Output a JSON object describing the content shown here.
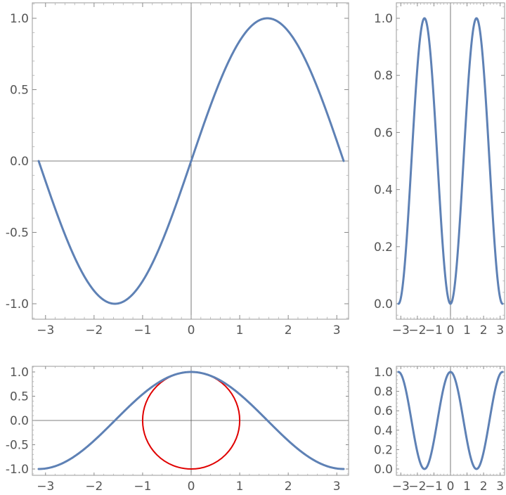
{
  "colors": {
    "series": "#5e81b5",
    "circle": "#e00000",
    "frame": "#9a9a9a",
    "text": "#555555"
  },
  "chart_data": [
    {
      "type": "line",
      "panel": "top-left",
      "function": "sin(x)",
      "xlim": [
        -3.14159,
        3.14159
      ],
      "ylim": [
        -1.0,
        1.0
      ],
      "grid": false,
      "x_ticks": [
        -3,
        -2,
        -1,
        0,
        1,
        2,
        3
      ],
      "x_tick_labels": [
        "−3",
        "−2",
        "−1",
        "0",
        "1",
        "2",
        "3"
      ],
      "y_ticks": [
        -1.0,
        -0.5,
        0.0,
        0.5,
        1.0
      ],
      "y_tick_labels": [
        "-1.0",
        "-0.5",
        "0.0",
        "0.5",
        "1.0"
      ],
      "series": [
        {
          "x": [
            -3.1416,
            -2.3562,
            -1.5708,
            -0.7854,
            0,
            0.7854,
            1.5708,
            2.3562,
            3.1416
          ],
          "y": [
            0,
            -0.707,
            -1.0,
            -0.707,
            0,
            0.707,
            1.0,
            0.707,
            0
          ]
        }
      ]
    },
    {
      "type": "line",
      "panel": "top-right",
      "function": "sin(x)^2",
      "xlim": [
        -3.14159,
        3.14159
      ],
      "ylim": [
        0,
        1.0
      ],
      "grid": false,
      "x_ticks": [
        -3,
        -2,
        -1,
        0,
        1,
        2,
        3
      ],
      "x_tick_labels": [
        "−3",
        "−2",
        "−1",
        "0",
        "1",
        "2",
        "3"
      ],
      "y_ticks": [
        0.0,
        0.2,
        0.4,
        0.6,
        0.8,
        1.0
      ],
      "y_tick_labels": [
        "0.0",
        "0.2",
        "0.4",
        "0.6",
        "0.8",
        "1.0"
      ],
      "series": [
        {
          "x": [
            -3.1416,
            -2.3562,
            -1.5708,
            -0.7854,
            0,
            0.7854,
            1.5708,
            2.3562,
            3.1416
          ],
          "y": [
            0,
            0.5,
            1.0,
            0.5,
            0,
            0.5,
            1.0,
            0.5,
            0
          ]
        }
      ]
    },
    {
      "type": "line",
      "panel": "bottom-left",
      "function": "cos(x)",
      "xlim": [
        -3.14159,
        3.14159
      ],
      "ylim": [
        -1.0,
        1.0
      ],
      "grid": false,
      "x_ticks": [
        -3,
        -2,
        -1,
        0,
        1,
        2,
        3
      ],
      "x_tick_labels": [
        "−3",
        "−2",
        "−1",
        "0",
        "1",
        "2",
        "3"
      ],
      "y_ticks": [
        -1.0,
        -0.5,
        0.0,
        0.5,
        1.0
      ],
      "y_tick_labels": [
        "-1.0",
        "-0.5",
        "0.0",
        "0.5",
        "1.0"
      ],
      "series": [
        {
          "x": [
            -3.1416,
            -2.3562,
            -1.5708,
            -0.7854,
            0,
            0.7854,
            1.5708,
            2.3562,
            3.1416
          ],
          "y": [
            -1.0,
            -0.707,
            0,
            0.707,
            1.0,
            0.707,
            0,
            -0.707,
            -1.0
          ]
        }
      ],
      "shapes": [
        {
          "kind": "circle",
          "center": [
            0,
            0
          ],
          "radius": 1,
          "color": "#e00000"
        }
      ]
    },
    {
      "type": "line",
      "panel": "bottom-right",
      "function": "cos(x)^2",
      "xlim": [
        -3.14159,
        3.14159
      ],
      "ylim": [
        0,
        1.0
      ],
      "grid": false,
      "x_ticks": [
        -3,
        -2,
        -1,
        0,
        1,
        2,
        3
      ],
      "x_tick_labels": [
        "−3",
        "−2",
        "−1",
        "0",
        "1",
        "2",
        "3"
      ],
      "y_ticks": [
        0.0,
        0.2,
        0.4,
        0.6,
        0.8,
        1.0
      ],
      "y_tick_labels": [
        "0.0",
        "0.2",
        "0.4",
        "0.6",
        "0.8",
        "1.0"
      ],
      "series": [
        {
          "x": [
            -3.1416,
            -2.3562,
            -1.5708,
            -0.7854,
            0,
            0.7854,
            1.5708,
            2.3562,
            3.1416
          ],
          "y": [
            1.0,
            0.5,
            0,
            0.5,
            1.0,
            0.5,
            0,
            0.5,
            1.0
          ]
        }
      ]
    }
  ]
}
